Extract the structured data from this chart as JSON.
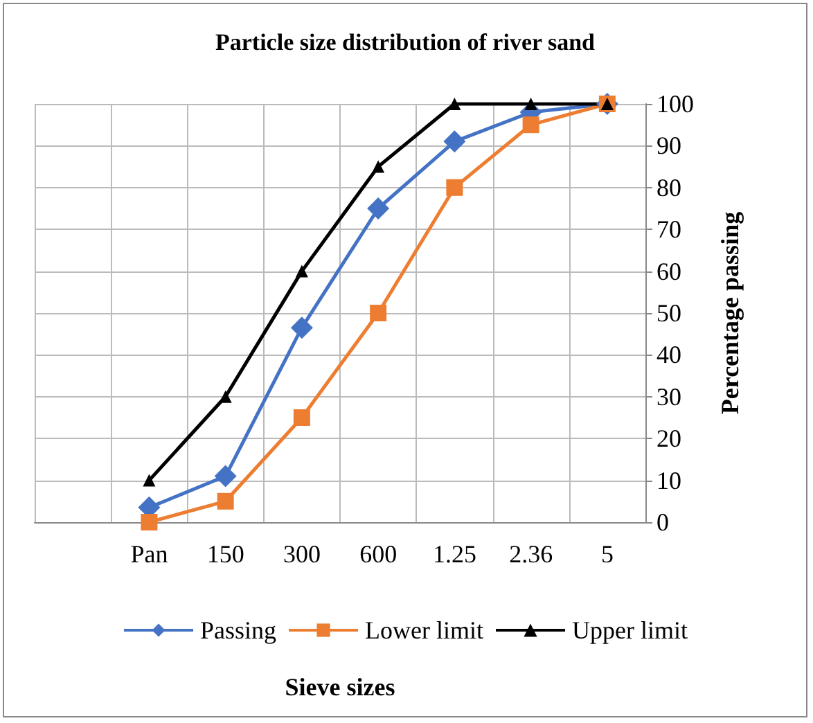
{
  "chart_data": {
    "type": "line",
    "title": "Particle size distribution of river sand",
    "xlabel": "Sieve sizes",
    "ylabel": "Percentage passing",
    "categories": [
      null,
      "Pan",
      "150",
      "300",
      "600",
      "1.25",
      "2.36",
      "5"
    ],
    "series": [
      {
        "name": "Passing",
        "color": "#4472c4",
        "marker": "diamond",
        "values": [
          null,
          3.5,
          11,
          46.5,
          75,
          91,
          98,
          100
        ]
      },
      {
        "name": "Lower limit",
        "color": "#ed7d31",
        "marker": "square",
        "values": [
          null,
          0,
          5,
          25,
          50,
          80,
          95,
          100
        ]
      },
      {
        "name": "Upper limit",
        "color": "#000000",
        "marker": "triangle",
        "values": [
          null,
          10,
          30,
          60,
          85,
          100,
          100,
          100
        ]
      }
    ],
    "ylim": [
      0,
      100
    ],
    "yticks": [
      0,
      10,
      20,
      30,
      40,
      50,
      60,
      70,
      80,
      90,
      100
    ],
    "grid": true,
    "legend": "bottom"
  }
}
